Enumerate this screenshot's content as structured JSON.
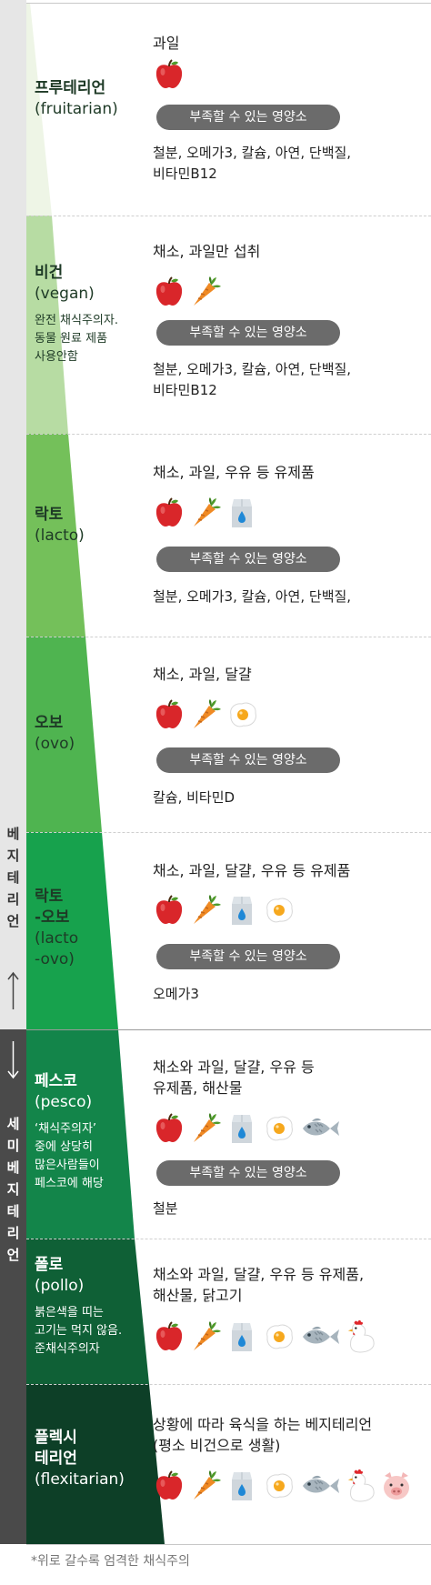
{
  "colors": {
    "fruitarian": "#eef5e6",
    "vegan": "#b7dca3",
    "lacto": "#74c05a",
    "ovo": "#4fb450",
    "lacto_ovo": "#17a24d",
    "pesco": "#13854a",
    "pollo": "#0f6036",
    "flexitarian": "#0d3f27",
    "pill": "#6b6b6b",
    "sidebar_top": "#e6e6e6",
    "sidebar_bottom": "#4a4a4a"
  },
  "sidebar": {
    "vegetarian_label": [
      "베",
      "지",
      "테",
      "리",
      "언"
    ],
    "semi_label": [
      "세",
      "미",
      "베",
      "지",
      "테",
      "리",
      "언"
    ]
  },
  "pill_label": "부족할 수 있는 영양소",
  "categories": [
    {
      "ko": "프루테리언",
      "en": "(fruitarian)",
      "note": [],
      "foods": [
        "과일"
      ],
      "icons": [
        "apple-icon"
      ],
      "nutrients": [
        "철분, 오메가3, 칼슘, 아연, 단백질,",
        "비타민B12"
      ]
    },
    {
      "ko": "비건",
      "en": "(vegan)",
      "note": [
        "완전 채식주의자.",
        "동물 원료 제품",
        "사용안함"
      ],
      "foods": [
        "채소, 과일만 섭취"
      ],
      "icons": [
        "apple-icon",
        "carrot-icon"
      ],
      "nutrients": [
        "철분, 오메가3, 칼슘, 아연, 단백질,",
        "비타민B12"
      ]
    },
    {
      "ko": "락토",
      "en": "(lacto)",
      "note": [],
      "foods": [
        "채소, 과일, 우유 등 유제품"
      ],
      "icons": [
        "apple-icon",
        "carrot-icon",
        "milk-icon"
      ],
      "nutrients": [
        "철분, 오메가3, 칼슘, 아연, 단백질,"
      ]
    },
    {
      "ko": "오보",
      "en": "(ovo)",
      "note": [],
      "foods": [
        "채소, 과일, 달걀"
      ],
      "icons": [
        "apple-icon",
        "carrot-icon",
        "egg-icon"
      ],
      "nutrients": [
        "칼슘, 비타민D"
      ]
    },
    {
      "ko": "락토",
      "ko2": "-오보",
      "en": "(lacto",
      "en2": "-ovo)",
      "note": [],
      "foods": [
        "채소, 과일, 달걀, 우유 등 유제품"
      ],
      "icons": [
        "apple-icon",
        "carrot-icon",
        "milk-icon",
        "egg-icon"
      ],
      "nutrients": [
        "오메가3"
      ]
    },
    {
      "ko": "페스코",
      "en": "(pesco)",
      "note": [
        "‘채식주의자’",
        "중에 상당히",
        "많은사람들이",
        "페스코에 해당"
      ],
      "foods": [
        "채소와 과일, 달걀, 우유 등",
        "유제품, 해산물"
      ],
      "icons": [
        "apple-icon",
        "carrot-icon",
        "milk-icon",
        "egg-icon",
        "fish-icon"
      ],
      "nutrients": [
        "철분"
      ]
    },
    {
      "ko": "폴로",
      "en": "(pollo)",
      "note": [
        "붉은색을 띠는",
        "고기는 먹지 않음.",
        "준채식주의자"
      ],
      "foods": [
        "채소와 과일, 달걀, 우유 등 유제품,",
        "해산물, 닭고기"
      ],
      "icons": [
        "apple-icon",
        "carrot-icon",
        "milk-icon",
        "egg-icon",
        "fish-icon",
        "chicken-icon"
      ],
      "nutrients": []
    },
    {
      "ko": "플렉시",
      "ko2": "테리언",
      "en": "(flexitarian)",
      "note": [],
      "foods": [
        "상황에 따라 육식을 하는 베지테리언",
        "(평소 비건으로 생활)"
      ],
      "icons": [
        "apple-icon",
        "carrot-icon",
        "milk-icon",
        "egg-icon",
        "fish-icon",
        "chicken-icon",
        "pig-icon"
      ],
      "nutrients": []
    }
  ],
  "footnote": "*위로 갈수록 엄격한 채식주의"
}
